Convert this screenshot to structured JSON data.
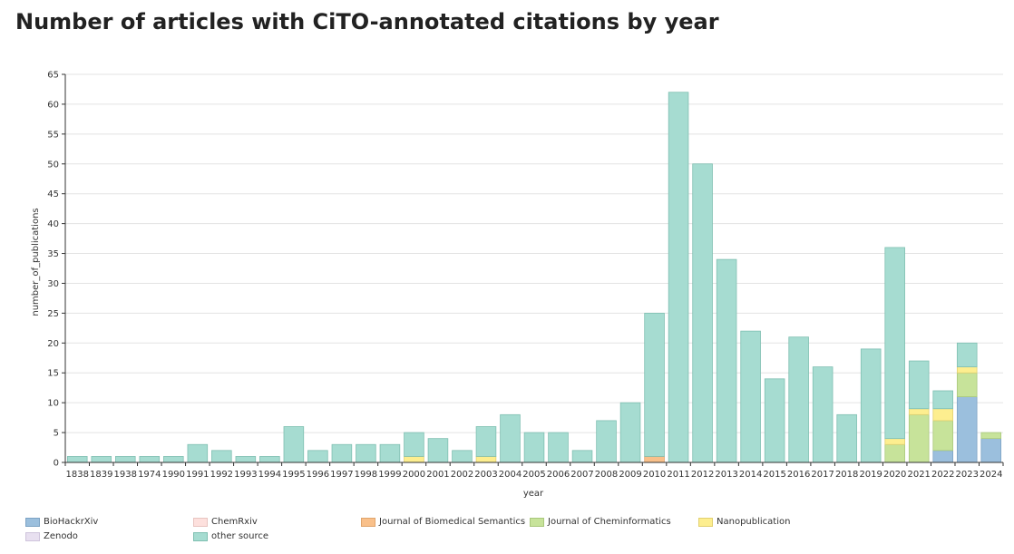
{
  "title": "Number of articles with CiTO-annotated citations by year",
  "chart_data": {
    "type": "bar",
    "stacked": true,
    "xlabel": "year",
    "ylabel": "number_of_publications",
    "ylim": [
      0,
      65
    ],
    "yticks": [
      0,
      5,
      10,
      15,
      20,
      25,
      30,
      35,
      40,
      45,
      50,
      55,
      60,
      65
    ],
    "grid": true,
    "legend_position": "bottom",
    "categories": [
      "1838",
      "1839",
      "1938",
      "1974",
      "1990",
      "1991",
      "1992",
      "1993",
      "1994",
      "1995",
      "1996",
      "1997",
      "1998",
      "1999",
      "2000",
      "2001",
      "2002",
      "2003",
      "2004",
      "2005",
      "2006",
      "2007",
      "2008",
      "2009",
      "2010",
      "2011",
      "2012",
      "2013",
      "2014",
      "2015",
      "2016",
      "2017",
      "2018",
      "2019",
      "2020",
      "2021",
      "2022",
      "2023",
      "2024"
    ],
    "series": [
      {
        "name": "BioHackrXiv",
        "color": "#9bbfdd",
        "stroke": "#7da3c4",
        "values": [
          0,
          0,
          0,
          0,
          0,
          0,
          0,
          0,
          0,
          0,
          0,
          0,
          0,
          0,
          0,
          0,
          0,
          0,
          0,
          0,
          0,
          0,
          0,
          0,
          0,
          0,
          0,
          0,
          0,
          0,
          0,
          0,
          0,
          0,
          0,
          0,
          2,
          11,
          4
        ]
      },
      {
        "name": "ChemRxiv",
        "color": "#fde0dd",
        "stroke": "#e8c4c0",
        "values": [
          0,
          0,
          0,
          0,
          0,
          0,
          0,
          0,
          0,
          0,
          0,
          0,
          0,
          0,
          0,
          0,
          0,
          0,
          0,
          0,
          0,
          0,
          0,
          0,
          0,
          0,
          0,
          0,
          0,
          0,
          0,
          0,
          0,
          0,
          0,
          0,
          0,
          0,
          0
        ]
      },
      {
        "name": "Journal of Biomedical Semantics",
        "color": "#f9c08a",
        "stroke": "#e0a56c",
        "values": [
          0,
          0,
          0,
          0,
          0,
          0,
          0,
          0,
          0,
          0,
          0,
          0,
          0,
          0,
          0,
          0,
          0,
          0,
          0,
          0,
          0,
          0,
          0,
          0,
          1,
          0,
          0,
          0,
          0,
          0,
          0,
          0,
          0,
          0,
          0,
          0,
          0,
          0,
          0
        ]
      },
      {
        "name": "Journal of Cheminformatics",
        "color": "#c7e39a",
        "stroke": "#a9c87c",
        "values": [
          0,
          0,
          0,
          0,
          0,
          0,
          0,
          0,
          0,
          0,
          0,
          0,
          0,
          0,
          0,
          0,
          0,
          0,
          0,
          0,
          0,
          0,
          0,
          0,
          0,
          0,
          0,
          0,
          0,
          0,
          0,
          0,
          0,
          0,
          3,
          8,
          5,
          4,
          1
        ]
      },
      {
        "name": "Nanopublication",
        "color": "#fdee8f",
        "stroke": "#e2d070",
        "values": [
          0,
          0,
          0,
          0,
          0,
          0,
          0,
          0,
          0,
          0,
          0,
          0,
          0,
          0,
          1,
          0,
          0,
          1,
          0,
          0,
          0,
          0,
          0,
          0,
          0,
          0,
          0,
          0,
          0,
          0,
          0,
          0,
          0,
          0,
          1,
          1,
          2,
          1,
          0
        ]
      },
      {
        "name": "Zenodo",
        "color": "#e8e0f0",
        "stroke": "#cfc4dc",
        "values": [
          0,
          0,
          0,
          0,
          0,
          0,
          0,
          0,
          0,
          0,
          0,
          0,
          0,
          0,
          0,
          0,
          0,
          0,
          0,
          0,
          0,
          0,
          0,
          0,
          0,
          0,
          0,
          0,
          0,
          0,
          0,
          0,
          0,
          0,
          0,
          0,
          0,
          0,
          0
        ]
      },
      {
        "name": "other source",
        "color": "#a6dcd1",
        "stroke": "#7fbfb1",
        "values": [
          1,
          1,
          1,
          1,
          1,
          3,
          2,
          1,
          1,
          6,
          2,
          3,
          3,
          3,
          4,
          4,
          2,
          5,
          8,
          5,
          5,
          2,
          7,
          10,
          24,
          62,
          50,
          34,
          22,
          14,
          21,
          16,
          8,
          19,
          32,
          8,
          3,
          4,
          0
        ]
      }
    ]
  }
}
